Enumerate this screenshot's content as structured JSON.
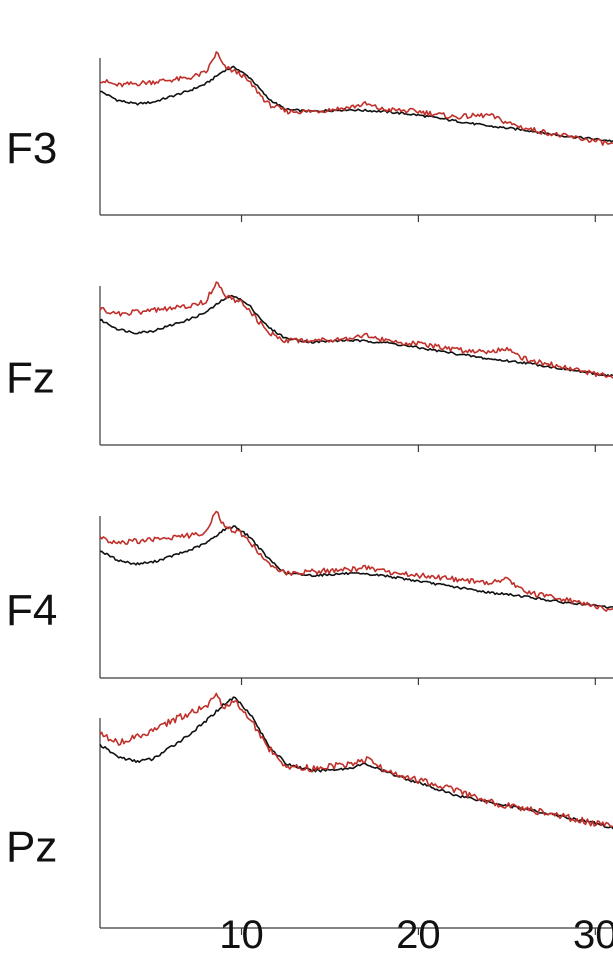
{
  "chart_data": {
    "type": "line",
    "x_ticks": [
      10,
      20,
      30
    ],
    "x_range": [
      2,
      31
    ],
    "y_range": [
      0,
      1
    ],
    "grid": false,
    "colors": {
      "black_trace": "#111111",
      "red_trace": "#c0302a"
    },
    "panels": [
      {
        "name": "F3",
        "series": [
          {
            "color_key": "black_trace",
            "x": [
              2,
              3,
              4,
              5,
              6,
              7,
              8,
              9,
              9.6,
              10.5,
              11.5,
              12.5,
              14,
              16,
              18,
              20,
              22,
              24,
              26,
              28,
              30,
              31
            ],
            "y": [
              0.67,
              0.62,
              0.6,
              0.61,
              0.64,
              0.67,
              0.71,
              0.78,
              0.8,
              0.74,
              0.63,
              0.57,
              0.56,
              0.57,
              0.56,
              0.54,
              0.51,
              0.48,
              0.46,
              0.43,
              0.41,
              0.4
            ]
          },
          {
            "color_key": "red_trace",
            "x": [
              2,
              3,
              4,
              5,
              6,
              7,
              8,
              8.6,
              9,
              10,
              10.8,
              11.5,
              12.5,
              14,
              16,
              17,
              18,
              20,
              22,
              24,
              25,
              26,
              28,
              30,
              31
            ],
            "y": [
              0.73,
              0.7,
              0.71,
              0.72,
              0.73,
              0.74,
              0.77,
              0.88,
              0.8,
              0.76,
              0.68,
              0.6,
              0.56,
              0.56,
              0.58,
              0.6,
              0.57,
              0.56,
              0.53,
              0.54,
              0.5,
              0.47,
              0.43,
              0.4,
              0.38
            ]
          }
        ]
      },
      {
        "name": "Fz",
        "series": [
          {
            "color_key": "black_trace",
            "x": [
              2,
              3,
              4,
              5,
              6,
              7,
              8,
              9,
              9.6,
              10.5,
              11.5,
              12.5,
              14,
              16,
              18,
              20,
              22,
              24,
              26,
              28,
              30,
              31
            ],
            "y": [
              0.67,
              0.62,
              0.6,
              0.61,
              0.64,
              0.67,
              0.71,
              0.78,
              0.8,
              0.74,
              0.63,
              0.57,
              0.55,
              0.56,
              0.55,
              0.52,
              0.49,
              0.46,
              0.44,
              0.41,
              0.38,
              0.37
            ]
          },
          {
            "color_key": "red_trace",
            "x": [
              2,
              3,
              4,
              5,
              6,
              7,
              8,
              8.6,
              9,
              10,
              10.8,
              11.5,
              12.5,
              14,
              16,
              17,
              18,
              20,
              22,
              24,
              25,
              26,
              28,
              30,
              31
            ],
            "y": [
              0.73,
              0.7,
              0.71,
              0.72,
              0.73,
              0.74,
              0.77,
              0.88,
              0.8,
              0.76,
              0.68,
              0.6,
              0.56,
              0.56,
              0.57,
              0.59,
              0.56,
              0.54,
              0.51,
              0.5,
              0.52,
              0.46,
              0.42,
              0.38,
              0.36
            ]
          }
        ]
      },
      {
        "name": "F4",
        "series": [
          {
            "color_key": "black_trace",
            "x": [
              2,
              3,
              4,
              5,
              6,
              7,
              8,
              9,
              9.6,
              10.5,
              11.5,
              12.5,
              14,
              16,
              18,
              20,
              22,
              24,
              26,
              28,
              30,
              31
            ],
            "y": [
              0.67,
              0.62,
              0.6,
              0.61,
              0.64,
              0.67,
              0.71,
              0.78,
              0.8,
              0.74,
              0.63,
              0.55,
              0.54,
              0.55,
              0.54,
              0.51,
              0.48,
              0.45,
              0.43,
              0.4,
              0.38,
              0.37
            ]
          },
          {
            "color_key": "red_trace",
            "x": [
              2,
              3,
              4,
              5,
              6,
              7,
              8,
              8.6,
              9,
              10,
              10.8,
              11.5,
              12.5,
              14,
              16,
              17,
              18,
              20,
              22,
              24,
              25,
              26,
              28,
              30,
              31
            ],
            "y": [
              0.74,
              0.71,
              0.72,
              0.73,
              0.74,
              0.75,
              0.77,
              0.88,
              0.8,
              0.76,
              0.68,
              0.6,
              0.55,
              0.56,
              0.57,
              0.58,
              0.56,
              0.54,
              0.52,
              0.5,
              0.52,
              0.45,
              0.42,
              0.38,
              0.35
            ]
          }
        ]
      },
      {
        "name": "Pz",
        "series": [
          {
            "color_key": "black_trace",
            "x": [
              2,
              3,
              4,
              5,
              6,
              7,
              8,
              9,
              9.6,
              10.5,
              11.5,
              12.5,
              14,
              16,
              17,
              18,
              20,
              22,
              24,
              26,
              28,
              30,
              31
            ],
            "y": [
              0.77,
              0.72,
              0.7,
              0.71,
              0.76,
              0.81,
              0.87,
              0.94,
              0.97,
              0.9,
              0.77,
              0.69,
              0.66,
              0.67,
              0.69,
              0.66,
              0.61,
              0.56,
              0.53,
              0.5,
              0.47,
              0.44,
              0.42
            ]
          },
          {
            "color_key": "red_trace",
            "x": [
              2,
              3,
              4,
              5,
              6,
              7,
              8,
              8.6,
              9,
              9.6,
              10.5,
              11.5,
              12.5,
              14,
              16,
              17,
              18,
              20,
              22,
              24,
              26,
              28,
              30,
              31
            ],
            "y": [
              0.82,
              0.78,
              0.8,
              0.83,
              0.87,
              0.9,
              0.93,
              0.98,
              0.93,
              0.96,
              0.88,
              0.76,
              0.68,
              0.67,
              0.69,
              0.71,
              0.67,
              0.62,
              0.58,
              0.53,
              0.5,
              0.47,
              0.44,
              0.43
            ]
          }
        ]
      }
    ]
  }
}
